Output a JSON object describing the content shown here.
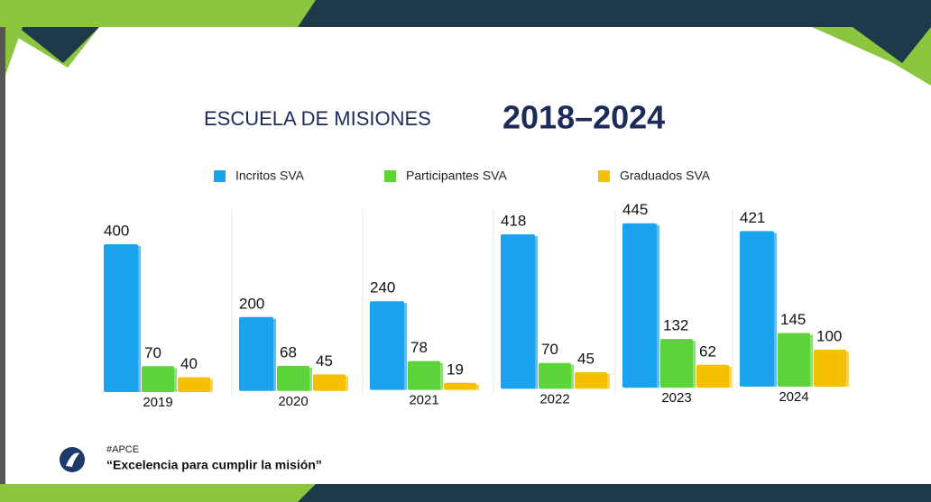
{
  "chart_data": {
    "type": "bar",
    "title": "ESCUELA DE MISIONES",
    "subtitle": "2018–2024",
    "categories": [
      "2019",
      "2020",
      "2021",
      "2022",
      "2023",
      "2024"
    ],
    "series": [
      {
        "name": "Incritos SVA",
        "color": "#1aa3ef",
        "values": [
          400,
          200,
          240,
          418,
          445,
          421
        ]
      },
      {
        "name": "Participantes SVA",
        "color": "#5bd43a",
        "values": [
          70,
          68,
          78,
          70,
          132,
          145
        ]
      },
      {
        "name": "Graduados SVA",
        "color": "#f5c000",
        "values": [
          40,
          45,
          19,
          45,
          62,
          100
        ]
      }
    ],
    "legend": "top"
  },
  "footer": {
    "tag": "#APCE",
    "motto": "“Excelencia para cumplir la misión”"
  }
}
